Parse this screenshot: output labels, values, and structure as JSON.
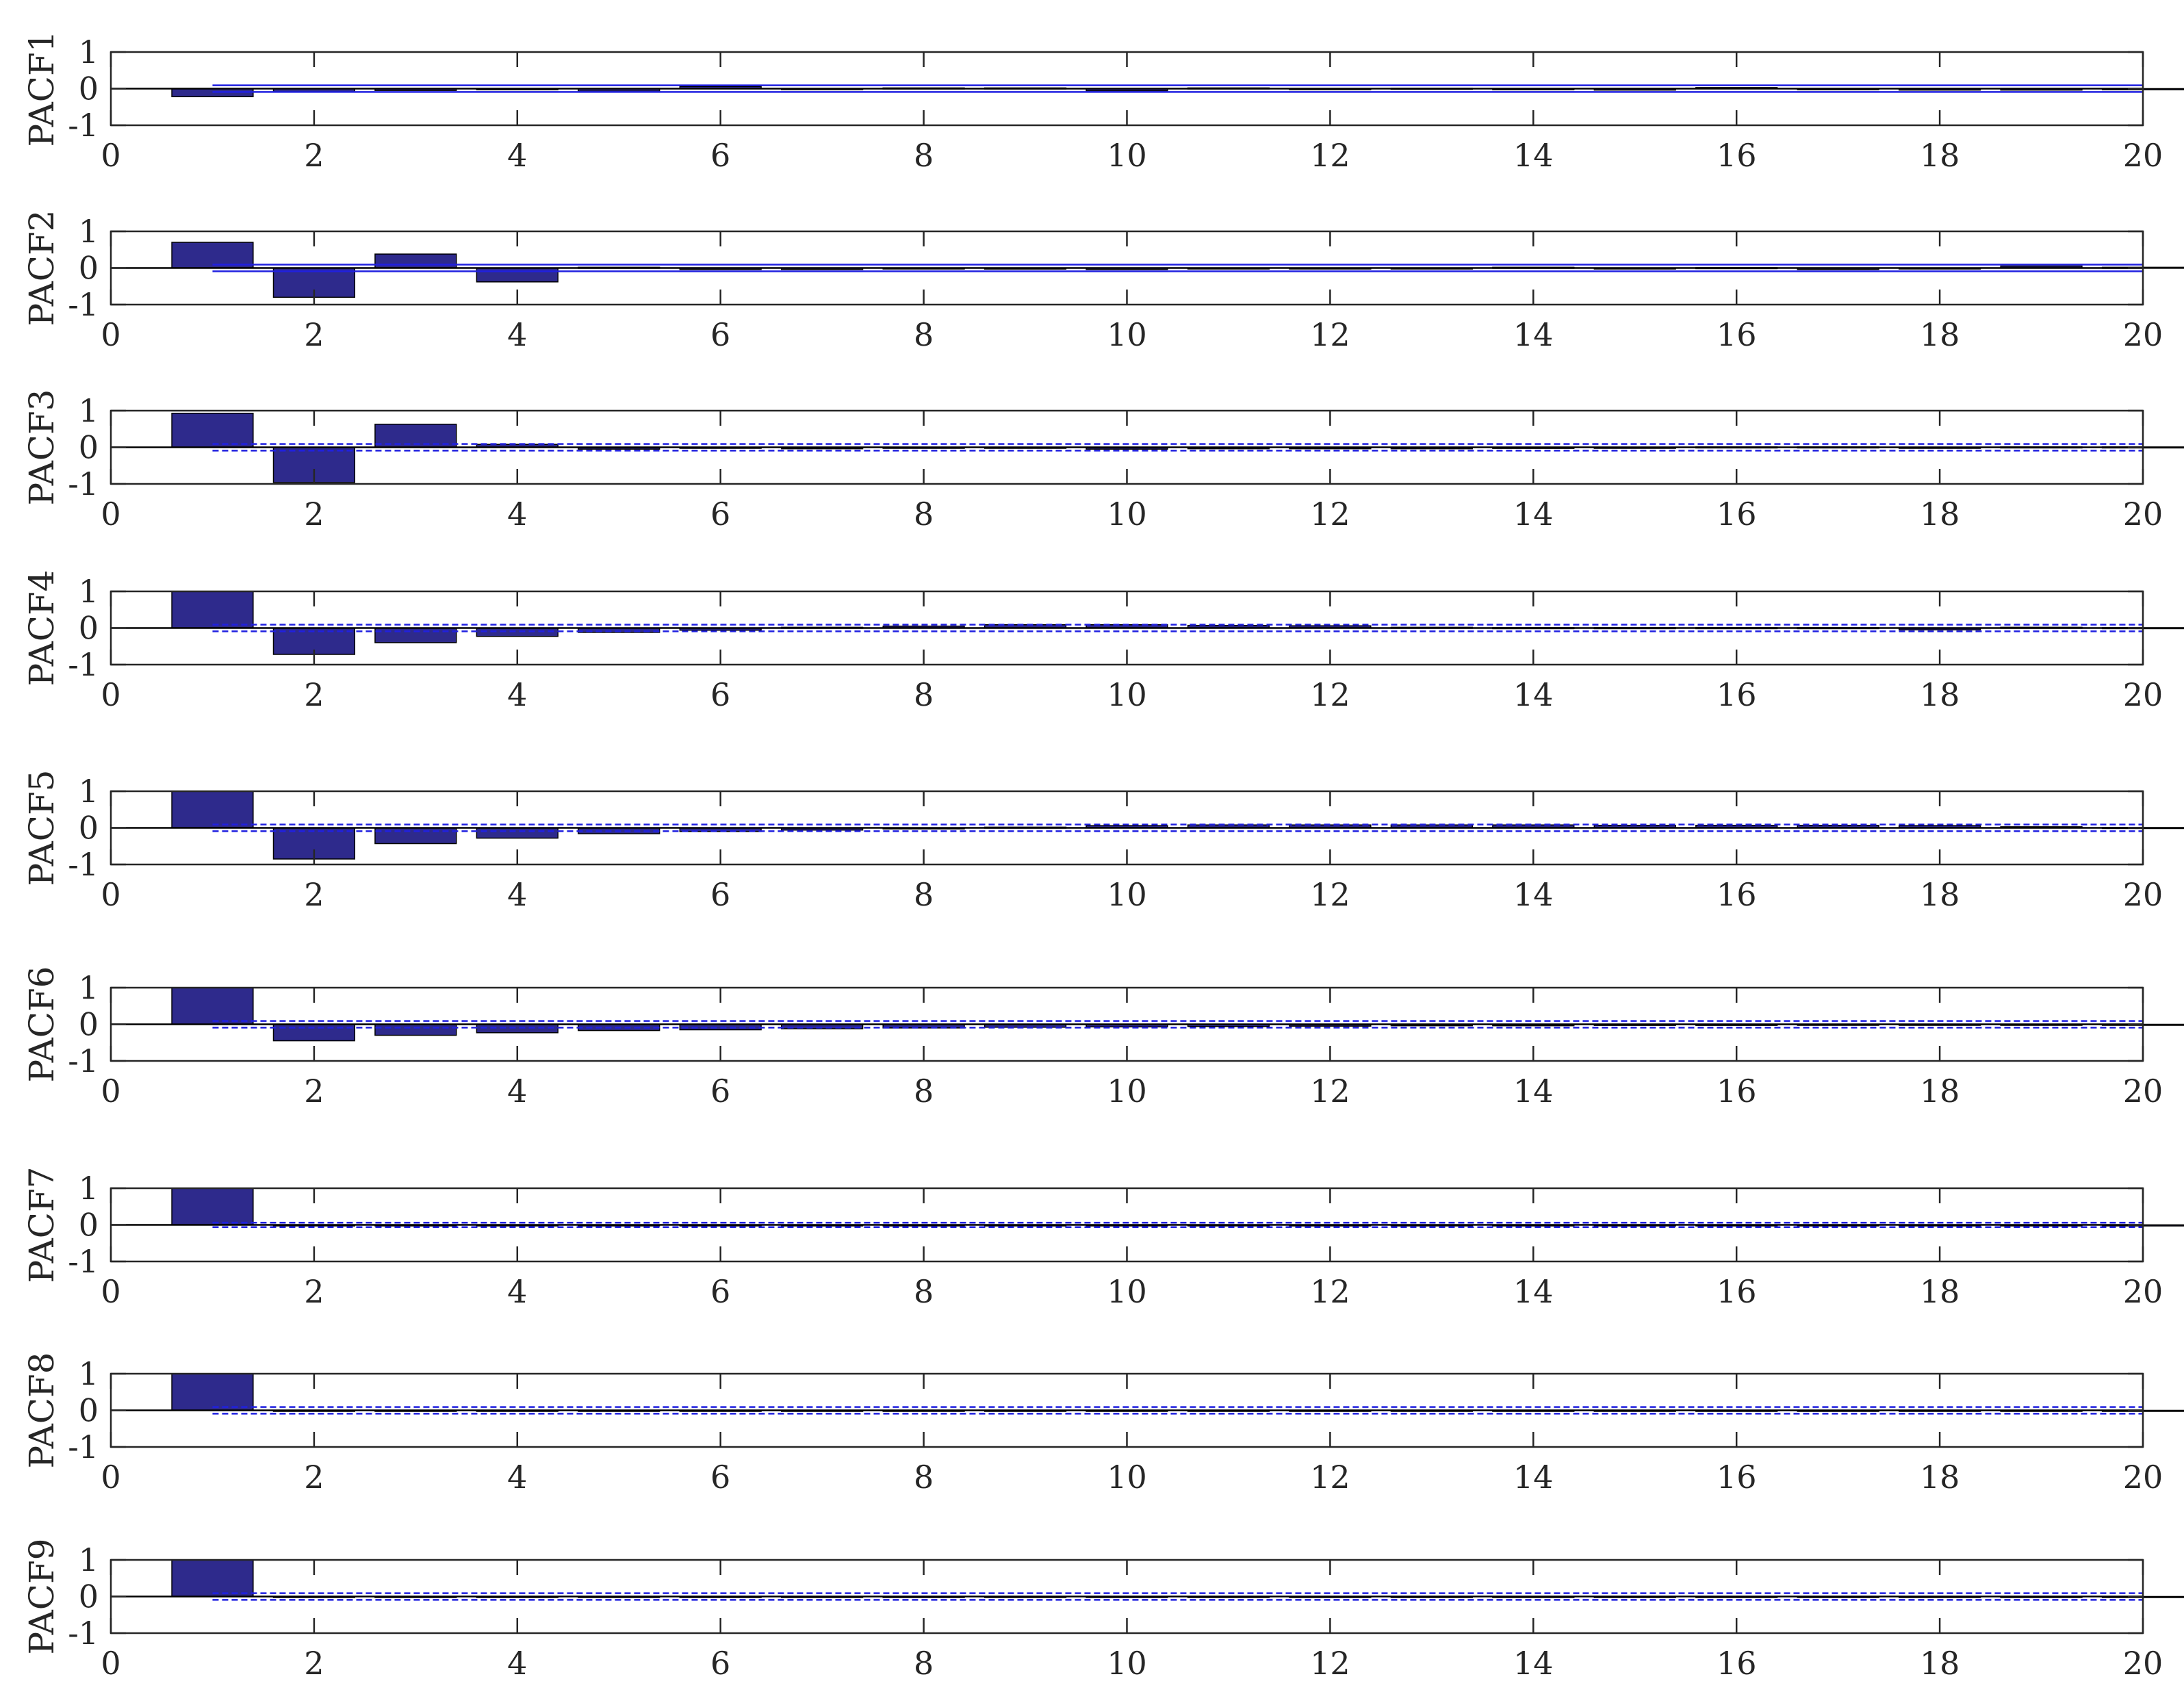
{
  "chart_data": {
    "type": "bar",
    "xlim": [
      0,
      20
    ],
    "ylim": [
      -1,
      1
    ],
    "x_ticks": [
      "0",
      "2",
      "4",
      "6",
      "8",
      "10",
      "12",
      "14",
      "16",
      "18",
      "20"
    ],
    "y_ticks": [
      "-1",
      "0",
      "1"
    ],
    "grid": false,
    "colors": {
      "bar_fill": "#2e2a8c",
      "bar_edge": "#000000",
      "bound": "#2020e0",
      "axis": "#262626"
    },
    "panels": [
      {
        "ylabel": "PACF1",
        "lags": [
          1,
          2,
          3,
          4,
          5,
          6,
          7,
          8,
          9,
          10,
          11,
          12,
          13,
          14,
          15,
          16,
          17,
          18,
          19,
          20
        ],
        "values": [
          -0.22,
          -0.08,
          -0.05,
          -0.03,
          -0.07,
          0.06,
          -0.02,
          0.02,
          0.02,
          -0.06,
          0.02,
          -0.01,
          0.01,
          -0.03,
          -0.04,
          0.03,
          -0.03,
          -0.04,
          -0.04,
          -0.03
        ],
        "bound": 0.09,
        "bound_style": "solid"
      },
      {
        "ylabel": "PACF2",
        "lags": [
          1,
          2,
          3,
          4,
          5,
          6,
          7,
          8,
          9,
          10,
          11,
          12,
          13,
          14,
          15,
          16,
          17,
          18,
          19,
          20
        ],
        "values": [
          0.7,
          -0.8,
          0.38,
          -0.38,
          0.02,
          -0.04,
          -0.04,
          -0.02,
          -0.03,
          -0.04,
          -0.02,
          -0.02,
          -0.01,
          0.02,
          -0.02,
          0.01,
          -0.04,
          -0.02,
          0.05,
          0.02
        ],
        "bound": 0.09,
        "bound_style": "solid"
      },
      {
        "ylabel": "PACF3",
        "lags": [
          1,
          2,
          3,
          4,
          5,
          6,
          7,
          8,
          9,
          10,
          11,
          12,
          13,
          14,
          15,
          16,
          17,
          18,
          19,
          20
        ],
        "values": [
          0.93,
          -0.96,
          0.63,
          0.08,
          -0.05,
          -0.02,
          -0.04,
          -0.01,
          -0.02,
          -0.05,
          -0.04,
          -0.04,
          -0.04,
          -0.03,
          -0.02,
          0.01,
          0.01,
          -0.01,
          0.01,
          0.01
        ],
        "bound": 0.09,
        "bound_style": "dashed"
      },
      {
        "ylabel": "PACF4",
        "lags": [
          1,
          2,
          3,
          4,
          5,
          6,
          7,
          8,
          9,
          10,
          11,
          12,
          13,
          14,
          15,
          16,
          17,
          18,
          19,
          20
        ],
        "values": [
          1.0,
          -0.72,
          -0.4,
          -0.23,
          -0.12,
          -0.06,
          0.02,
          0.05,
          0.09,
          0.09,
          0.07,
          0.06,
          0.02,
          0.01,
          0.01,
          0.01,
          0.01,
          -0.05,
          0.02,
          0.01
        ],
        "bound": 0.09,
        "bound_style": "dashed"
      },
      {
        "ylabel": "PACF5",
        "lags": [
          1,
          2,
          3,
          4,
          5,
          6,
          7,
          8,
          9,
          10,
          11,
          12,
          13,
          14,
          15,
          16,
          17,
          18,
          19,
          20
        ],
        "values": [
          1.0,
          -0.85,
          -0.43,
          -0.28,
          -0.16,
          -0.1,
          -0.06,
          -0.02,
          0.02,
          0.06,
          0.08,
          0.08,
          0.08,
          0.08,
          0.07,
          0.07,
          0.07,
          0.06,
          0.03,
          0.01
        ],
        "bound": 0.09,
        "bound_style": "dashed"
      },
      {
        "ylabel": "PACF6",
        "lags": [
          1,
          2,
          3,
          4,
          5,
          6,
          7,
          8,
          9,
          10,
          11,
          12,
          13,
          14,
          15,
          16,
          17,
          18,
          19,
          20
        ],
        "values": [
          1.0,
          -0.45,
          -0.3,
          -0.23,
          -0.17,
          -0.15,
          -0.12,
          -0.1,
          -0.08,
          -0.07,
          -0.06,
          -0.05,
          -0.04,
          -0.04,
          -0.03,
          -0.03,
          -0.02,
          -0.02,
          -0.02,
          -0.02
        ],
        "bound": 0.09,
        "bound_style": "dashed"
      },
      {
        "ylabel": "PACF7",
        "lags": [
          1,
          2,
          3,
          4,
          5,
          6,
          7,
          8,
          9,
          10,
          11,
          12,
          13,
          14,
          15,
          16,
          17,
          18,
          19,
          20
        ],
        "values": [
          1.0,
          -0.03,
          -0.03,
          -0.03,
          -0.03,
          -0.03,
          -0.03,
          -0.03,
          -0.03,
          -0.03,
          -0.03,
          -0.03,
          -0.03,
          -0.03,
          -0.03,
          -0.03,
          -0.03,
          -0.03,
          -0.03,
          -0.03
        ],
        "bound": 0.06,
        "bound_style": "dashed"
      },
      {
        "ylabel": "PACF8",
        "lags": [
          1,
          2,
          3,
          4,
          5,
          6,
          7,
          8,
          9,
          10,
          11,
          12,
          13,
          14,
          15,
          16,
          17,
          18,
          19,
          20
        ],
        "values": [
          1.0,
          -0.01,
          -0.01,
          -0.01,
          -0.01,
          -0.01,
          -0.01,
          -0.01,
          -0.01,
          -0.01,
          -0.01,
          -0.01,
          -0.01,
          -0.01,
          -0.01,
          -0.01,
          -0.01,
          -0.01,
          -0.01,
          -0.01
        ],
        "bound": 0.09,
        "bound_style": "dashed"
      },
      {
        "ylabel": "PACF9",
        "lags": [
          1,
          2,
          3,
          4,
          5,
          6,
          7,
          8,
          9,
          10,
          11,
          12,
          13,
          14,
          15,
          16,
          17,
          18,
          19,
          20
        ],
        "values": [
          1.0,
          -0.01,
          -0.01,
          -0.01,
          -0.01,
          -0.01,
          -0.01,
          -0.01,
          -0.01,
          -0.01,
          -0.01,
          -0.01,
          -0.01,
          -0.01,
          -0.01,
          -0.01,
          -0.01,
          -0.01,
          -0.01,
          -0.01
        ],
        "bound": 0.09,
        "bound_style": "dashed"
      }
    ]
  }
}
